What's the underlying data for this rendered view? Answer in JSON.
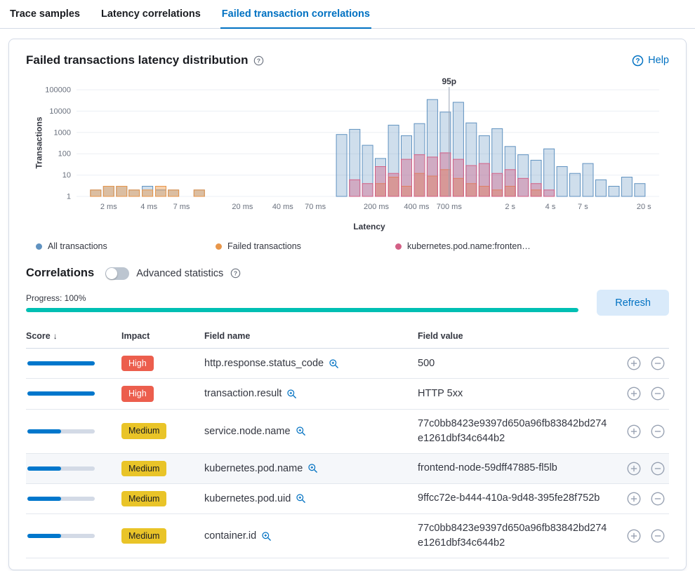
{
  "tabs": [
    {
      "label": "Trace samples",
      "active": false
    },
    {
      "label": "Latency correlations",
      "active": false
    },
    {
      "label": "Failed transaction correlations",
      "active": true
    }
  ],
  "panel": {
    "title": "Failed transactions latency distribution",
    "help_label": "Help"
  },
  "chart_data": {
    "type": "bar",
    "title": "Failed transactions latency distribution",
    "xlabel": "Latency",
    "ylabel": "Transactions",
    "x_scale": "log",
    "y_scale": "log",
    "xlim_ms": [
      1.15,
      26000
    ],
    "ylim": [
      1,
      100000
    ],
    "y_ticks": [
      1,
      10,
      100,
      1000,
      10000,
      100000
    ],
    "x_ticks": [
      {
        "label": "2 ms",
        "value_ms": 2
      },
      {
        "label": "4 ms",
        "value_ms": 4
      },
      {
        "label": "7 ms",
        "value_ms": 7
      },
      {
        "label": "20 ms",
        "value_ms": 20
      },
      {
        "label": "40 ms",
        "value_ms": 40
      },
      {
        "label": "70 ms",
        "value_ms": 70
      },
      {
        "label": "200 ms",
        "value_ms": 200
      },
      {
        "label": "400 ms",
        "value_ms": 400
      },
      {
        "label": "700 ms",
        "value_ms": 700
      },
      {
        "label": "2 s",
        "value_ms": 2000
      },
      {
        "label": "4 s",
        "value_ms": 4000
      },
      {
        "label": "7 s",
        "value_ms": 7000
      },
      {
        "label": "20 s",
        "value_ms": 20000
      }
    ],
    "annotation": {
      "label": "95p",
      "value_ms": 700
    },
    "series": [
      {
        "name": "All transactions",
        "color": "#6092c0",
        "fill_opacity": 0.3,
        "data": [
          [
            1.6,
            2
          ],
          [
            2,
            3
          ],
          [
            2.5,
            3
          ],
          [
            3.1,
            2
          ],
          [
            3.9,
            3
          ],
          [
            4.9,
            2
          ],
          [
            6.1,
            2
          ],
          [
            9.5,
            2
          ],
          [
            110,
            800
          ],
          [
            138,
            1400
          ],
          [
            172,
            250
          ],
          [
            215,
            60
          ],
          [
            269,
            2200
          ],
          [
            336,
            700
          ],
          [
            420,
            2600
          ],
          [
            525,
            35000
          ],
          [
            656,
            9000
          ],
          [
            820,
            26000
          ],
          [
            1025,
            2800
          ],
          [
            1281,
            700
          ],
          [
            1601,
            1500
          ],
          [
            2001,
            220
          ],
          [
            2501,
            90
          ],
          [
            3126,
            50
          ],
          [
            3907,
            170
          ],
          [
            4884,
            25
          ],
          [
            6105,
            12
          ],
          [
            7631,
            35
          ],
          [
            9539,
            6
          ],
          [
            11924,
            3
          ],
          [
            14905,
            8
          ],
          [
            18631,
            4
          ]
        ]
      },
      {
        "name": "Failed transactions",
        "color": "#e8964a",
        "fill_opacity": 0.45,
        "data": [
          [
            1.6,
            2
          ],
          [
            2,
            3
          ],
          [
            2.5,
            3
          ],
          [
            3.1,
            2
          ],
          [
            3.9,
            2
          ],
          [
            4.9,
            3
          ],
          [
            6.1,
            2
          ],
          [
            9.5,
            2
          ],
          [
            215,
            4
          ],
          [
            269,
            8
          ],
          [
            336,
            3
          ],
          [
            420,
            12
          ],
          [
            525,
            9
          ],
          [
            656,
            18
          ],
          [
            820,
            7
          ],
          [
            1025,
            4
          ],
          [
            1281,
            3
          ],
          [
            1601,
            2
          ],
          [
            2001,
            3
          ],
          [
            3126,
            2
          ]
        ]
      },
      {
        "name": "kubernetes.pod.name:fronten…",
        "color": "#d36086",
        "fill_opacity": 0.4,
        "data": [
          [
            138,
            6
          ],
          [
            172,
            4
          ],
          [
            215,
            25
          ],
          [
            269,
            12
          ],
          [
            336,
            55
          ],
          [
            420,
            90
          ],
          [
            525,
            70
          ],
          [
            656,
            110
          ],
          [
            820,
            55
          ],
          [
            1025,
            28
          ],
          [
            1281,
            35
          ],
          [
            1601,
            12
          ],
          [
            2001,
            18
          ],
          [
            2501,
            7
          ],
          [
            3126,
            4
          ],
          [
            3907,
            2
          ]
        ]
      }
    ]
  },
  "legend": [
    {
      "label": "All transactions",
      "color": "#6092c0"
    },
    {
      "label": "Failed transactions",
      "color": "#e8964a"
    },
    {
      "label": "kubernetes.pod.name:fronten…",
      "color": "#d36086"
    }
  ],
  "correlations": {
    "title": "Correlations",
    "toggle_label": "Advanced statistics",
    "progress_label": "Progress: 100%",
    "progress_pct": 100,
    "refresh_label": "Refresh"
  },
  "table": {
    "columns": [
      "Score",
      "Impact",
      "Field name",
      "Field value"
    ],
    "sort_indicator": "↓",
    "rows": [
      {
        "score_pct": 100,
        "impact": "High",
        "field_name": "http.response.status_code",
        "field_value": "500",
        "highlight": false
      },
      {
        "score_pct": 100,
        "impact": "High",
        "field_name": "transaction.result",
        "field_value": "HTTP 5xx",
        "highlight": false
      },
      {
        "score_pct": 50,
        "impact": "Medium",
        "field_name": "service.node.name",
        "field_value": "77c0bb8423e9397d650a96fb83842bd274e1261dbf34c644b2",
        "highlight": false
      },
      {
        "score_pct": 50,
        "impact": "Medium",
        "field_name": "kubernetes.pod.name",
        "field_value": "frontend-node-59dff47885-fl5lb",
        "highlight": true
      },
      {
        "score_pct": 50,
        "impact": "Medium",
        "field_name": "kubernetes.pod.uid",
        "field_value": "9ffcc72e-b444-410a-9d48-395fe28f752b",
        "highlight": false
      },
      {
        "score_pct": 50,
        "impact": "Medium",
        "field_name": "container.id",
        "field_value": "77c0bb8423e9397d650a96fb83842bd274e1261dbf34c644b2",
        "highlight": false
      }
    ]
  },
  "colors": {
    "accent": "#0071c2",
    "score_bar": "#0077cc",
    "progress": "#00bfb3",
    "badge_high_bg": "#ec5e4d",
    "badge_medium_bg": "#e9c428"
  }
}
